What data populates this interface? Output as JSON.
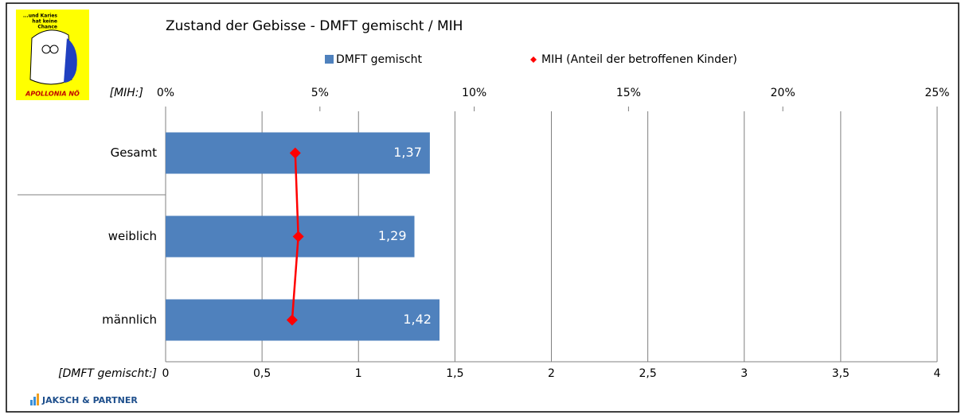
{
  "logo": {
    "slogan": [
      "...und Karies",
      "hat keine",
      "Chance"
    ],
    "name": "APOLLONIA NÖ"
  },
  "footer": "JAKSCH & PARTNER",
  "chart_data": {
    "type": "bar",
    "orientation": "horizontal",
    "title": "Zustand der Gebisse - DMFT gemischt / MIH",
    "categories": [
      "Gesamt",
      "weiblich",
      "männlich"
    ],
    "series": [
      {
        "name": "DMFT gemischt",
        "color": "#4f81bd",
        "values": [
          1.37,
          1.29,
          1.42
        ],
        "value_labels": [
          "1,37",
          "1,29",
          "1,42"
        ]
      },
      {
        "name": "MIH (Anteil der betroffenen Kinder)",
        "color": "#ff0000",
        "type": "line",
        "axis": "x2",
        "values": [
          4.2,
          4.3,
          4.1
        ]
      }
    ],
    "xlabel": "[DMFT gemischt:]",
    "xlim": [
      0,
      4
    ],
    "xticks": [
      0,
      {
        "value": 0.5,
        "label": "0,5"
      },
      1,
      {
        "value": 1.5,
        "label": "1,5"
      },
      2,
      {
        "value": 2.5,
        "label": "2,5"
      },
      3,
      {
        "value": 3.5,
        "label": "3,5"
      },
      4
    ],
    "x2label": "[MIH:]",
    "x2lim": [
      0,
      25
    ],
    "x2ticks": [
      {
        "value": 0,
        "label": "0%"
      },
      {
        "value": 5,
        "label": "5%"
      },
      {
        "value": 10,
        "label": "10%"
      },
      {
        "value": 15,
        "label": "15%"
      },
      {
        "value": 20,
        "label": "20%"
      },
      {
        "value": 25,
        "label": "25%"
      }
    ],
    "grid": true
  }
}
